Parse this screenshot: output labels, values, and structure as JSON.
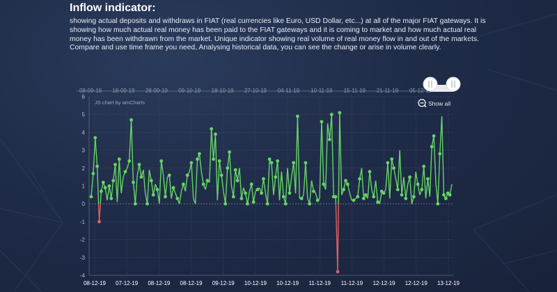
{
  "header": {
    "title": "Inflow indicator:",
    "description": "showing actual deposits and withdraws in FIAT (real currencies like Euro, USD Dollar, etc...) at all of the major FIAT gateways. It is showing how much actual real money has been paid to the FIAT gateways and it is coming to market and how much actual real money has been withdrawn from the market. Unique indicator showing real volume of real money flow in and out of the markets. Compare and use time frame you need, Analysing historical data, you can see the change or arise in volume clearly."
  },
  "chart_controls": {
    "credit": "JS chart by amCharts",
    "show_all_label": "Show all",
    "zoom_icon": "zoom-out-icon",
    "handle_icon": "grip-handle-icon"
  },
  "colors": {
    "positive": "#67d567",
    "negative": "#e06262",
    "grid": "#3a4866",
    "zero_line": "#6a7896"
  },
  "chart_data": {
    "type": "line",
    "title": "",
    "xlabel": "",
    "ylabel": "",
    "ylim": [
      -4,
      6
    ],
    "yticks": [
      -4,
      -3,
      -2,
      -1,
      0,
      1,
      2,
      3,
      4,
      5,
      6
    ],
    "grid": true,
    "bottom_tick_labels": [
      "08-12-19",
      "07-12-19",
      "08-12-19",
      "08-12-19",
      "09-12-19",
      "10-12-19",
      "10-12-19",
      "11-12-19",
      "11-12-19",
      "12-12-19",
      "12-12-19",
      "13-12-19"
    ],
    "navigator_labels": [
      "08-09-19",
      "18-09-19",
      "28-09-19",
      "09-10-19",
      "18-10-19",
      "27-10-19",
      "04-11-19",
      "10-11-19",
      "15-11-19",
      "21-11-19",
      "05-12-19"
    ],
    "values": [
      0.4,
      1.7,
      3.7,
      2.1,
      -1.0,
      0.7,
      1.2,
      0.9,
      0.2,
      1.0,
      0.3,
      1.3,
      2.2,
      0.1,
      2.5,
      0.6,
      1.5,
      1.8,
      2.0,
      2.4,
      4.7,
      1.2,
      0.0,
      1.6,
      2.2,
      1.5,
      1.9,
      0.6,
      0.0,
      1.9,
      1.3,
      0.5,
      1.1,
      0.8,
      0.0,
      2.4,
      1.6,
      0.4,
      1.5,
      1.6,
      0.3,
      0.9,
      0.6,
      0.3,
      0.0,
      0.7,
      1.1,
      0.7,
      1.6,
      1.8,
      2.3,
      0.3,
      0.0,
      2.5,
      2.8,
      1.8,
      1.1,
      0.8,
      1.3,
      1.2,
      4.2,
      2.5,
      3.9,
      0.2,
      2.4,
      1.6,
      0.7,
      0.0,
      2.0,
      2.9,
      1.0,
      0.4,
      1.9,
      1.3,
      2.0,
      0.3,
      0.9,
      0.6,
      0.0,
      0.7,
      1.1,
      0.1,
      0.7,
      0.8,
      0.9,
      0.6,
      1.4,
      0.6,
      0.0,
      2.5,
      2.3,
      0.5,
      1.5,
      2.4,
      0.2,
      1.8,
      0.4,
      0.0,
      2.0,
      0.6,
      1.5,
      2.3,
      0.6,
      4.9,
      0.3,
      0.3,
      0.5,
      2.3,
      0.3,
      0.0,
      1.3,
      0.7,
      0.6,
      0.2,
      0.3,
      4.6,
      1.1,
      0.8,
      4.5,
      3.6,
      5.0,
      0.4,
      0.4,
      -3.8,
      5.1,
      0.5,
      0.8,
      1.3,
      1.1,
      0.6,
      0.2,
      0.2,
      0.3,
      0.4,
      1.4,
      2.0,
      0.3,
      0.5,
      0.3,
      1.8,
      0.8,
      0.4,
      1.3,
      0.1,
      0.0,
      0.7,
      0.6,
      0.8,
      2.3,
      0.3,
      2.5,
      2.0,
      1.4,
      0.8,
      3.0,
      0.5,
      1.5,
      0.3,
      1.1,
      1.5,
      0.0,
      0.4,
      1.8,
      1.1,
      0.5,
      0.8,
      2.1,
      0.3,
      1.4,
      0.4,
      3.2,
      3.8,
      1.2,
      0.0,
      2.8,
      4.9,
      0.5,
      0.3,
      0.6,
      0.5,
      1.1
    ],
    "markers": [
      0,
      1,
      2,
      3,
      4,
      5,
      6,
      7,
      9,
      10,
      11,
      12,
      14,
      17,
      19,
      20,
      21,
      22,
      24,
      25,
      28,
      30,
      31,
      33,
      35,
      37,
      39,
      41,
      43,
      46,
      48,
      50,
      53,
      54,
      56,
      58,
      60,
      61,
      62,
      64,
      65,
      67,
      68,
      69,
      71,
      72,
      73,
      75,
      77,
      78,
      80,
      81,
      83,
      85,
      86,
      88,
      89,
      90,
      92,
      93,
      96,
      97,
      99,
      101,
      103,
      105,
      107,
      109,
      111,
      113,
      115,
      116,
      119,
      120,
      121,
      122,
      123,
      124,
      126,
      127,
      128,
      131,
      133,
      134,
      136,
      137,
      139,
      141,
      143,
      145,
      146,
      148,
      150,
      151,
      153,
      155,
      157,
      159,
      161,
      163,
      165,
      166,
      168,
      170,
      171,
      173,
      174,
      176,
      177,
      178,
      179,
      181
    ]
  }
}
